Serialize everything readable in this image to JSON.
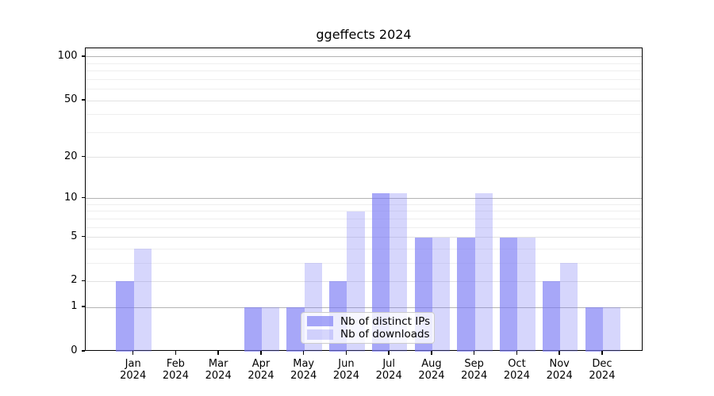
{
  "title": "ggeffects 2024",
  "colors": {
    "background": "#ffffff",
    "axis": "#000000",
    "bar_base": "#7878f5",
    "series_dark": "rgba(120,120,245,0.65)",
    "series_light": "rgba(120,120,245,0.30)",
    "grid_major": "#b3b3b3",
    "grid_mid": "#e2e2e2",
    "grid_minor": "#efefef",
    "legend_border": "#cccccc"
  },
  "chart_data": {
    "type": "bar",
    "title": "ggeffects 2024",
    "categories": [
      "Jan 2024",
      "Feb 2024",
      "Mar 2024",
      "Apr 2024",
      "May 2024",
      "Jun 2024",
      "Jul 2024",
      "Aug 2024",
      "Sep 2024",
      "Oct 2024",
      "Nov 2024",
      "Dec 2024"
    ],
    "series": [
      {
        "name": "Nb of distinct IPs",
        "color": "rgba(120,120,245,0.65)",
        "values": [
          2,
          0,
          0,
          1,
          1,
          2,
          11,
          5,
          5,
          5,
          2,
          1
        ]
      },
      {
        "name": "Nb of downloads",
        "color": "rgba(120,120,245,0.30)",
        "values": [
          4,
          0,
          0,
          1,
          3,
          8,
          11,
          5,
          11,
          5,
          3,
          1
        ]
      }
    ],
    "yscale": "log1p",
    "ylim": [
      0,
      114.7
    ],
    "yticks": [
      0,
      1,
      2,
      5,
      10,
      20,
      50,
      100
    ],
    "grid": {
      "orientation": "horizontal",
      "major_values": [
        1,
        10,
        100
      ],
      "mid_values": [
        2,
        5,
        20,
        50
      ],
      "minor_values": [
        3,
        4,
        6,
        7,
        8,
        9,
        30,
        40,
        60,
        70,
        80,
        90
      ]
    },
    "legend": {
      "position": "lower-center-inside",
      "entries": [
        "Nb of distinct IPs",
        "Nb of downloads"
      ]
    }
  }
}
